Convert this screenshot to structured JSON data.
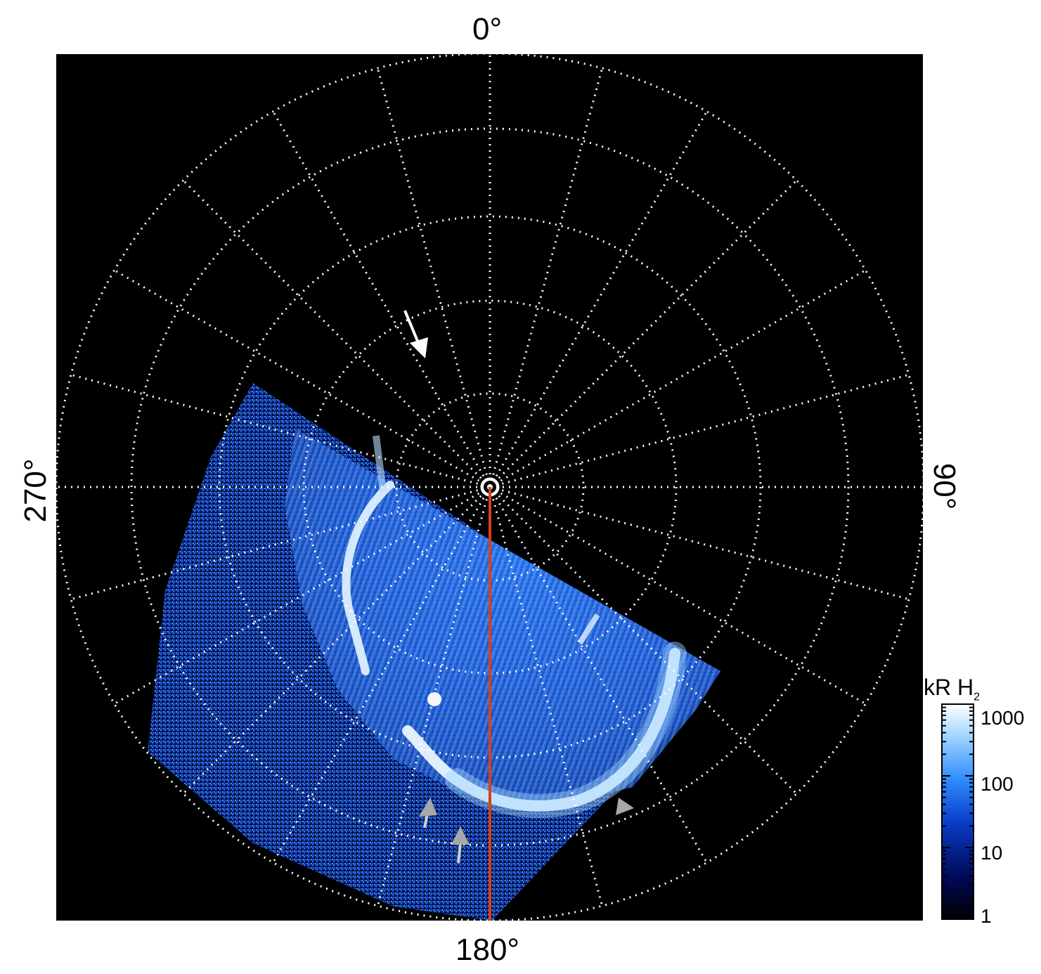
{
  "axis_labels": {
    "top": "0°",
    "bottom": "180°",
    "left": "270°",
    "right": "90°"
  },
  "colorbar": {
    "title": "kR H",
    "title_sub": "2",
    "ticks": [
      "1000",
      "100",
      "10",
      "1"
    ],
    "colors": [
      "#000000",
      "#000a5a",
      "#0a3cc8",
      "#2f8cff",
      "#9fd4ff",
      "#ffffff"
    ]
  },
  "colors": {
    "background_frame": "#000000",
    "grid": "#ffffff",
    "meridian_line": "#e0401c",
    "aurora_main": "#3a8cff",
    "aurora_bright": "#e8f6ff",
    "arrow_white": "#ffffff",
    "arrow_gray": "#a8a8a8"
  },
  "icons": {
    "pole_marker": "pole-target-icon",
    "arrow_white": "arrow-icon",
    "arrow_gray": "arrow-icon"
  }
}
